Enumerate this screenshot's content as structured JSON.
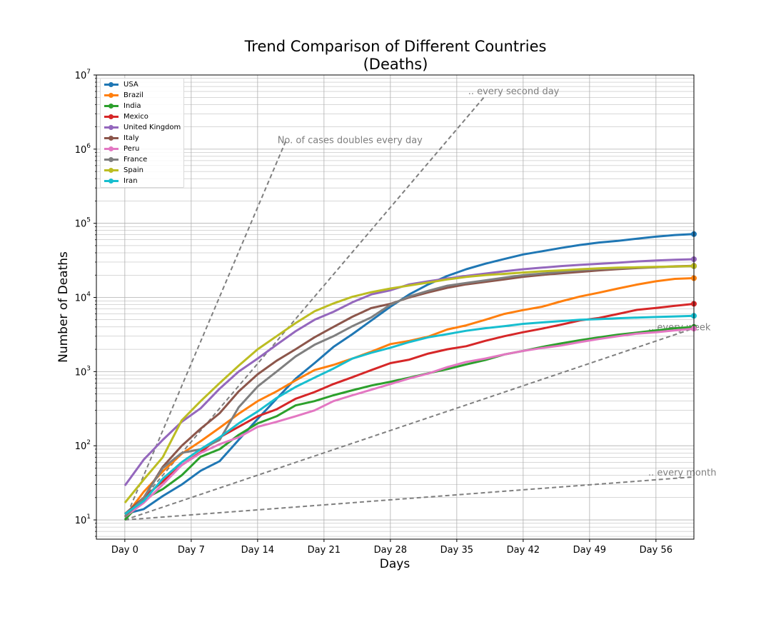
{
  "chart_data": {
    "type": "line",
    "title": "Trend Comparison of Different Countries",
    "subtitle": "(Deaths)",
    "xlabel": "Days",
    "ylabel": "Number of Deaths",
    "yscale": "log",
    "xlim": [
      -3,
      60
    ],
    "ylim": [
      5.5,
      10000000
    ],
    "grid": true,
    "legend_position": "top-left",
    "x_ticks": [
      0,
      7,
      14,
      21,
      28,
      35,
      42,
      49,
      56
    ],
    "x_tick_labels": [
      "Day 0",
      "Day 7",
      "Day 14",
      "Day 21",
      "Day 28",
      "Day 35",
      "Day 42",
      "Day 49",
      "Day 56"
    ],
    "y_ticks": [
      10,
      100,
      1000,
      10000,
      100000,
      1000000,
      10000000
    ],
    "y_tick_labels": [
      {
        "base": "10",
        "exp": "1"
      },
      {
        "base": "10",
        "exp": "2"
      },
      {
        "base": "10",
        "exp": "3"
      },
      {
        "base": "10",
        "exp": "4"
      },
      {
        "base": "10",
        "exp": "5"
      },
      {
        "base": "10",
        "exp": "6"
      },
      {
        "base": "10",
        "exp": "7"
      }
    ],
    "x": [
      0,
      2,
      4,
      6,
      8,
      10,
      12,
      14,
      16,
      18,
      20,
      22,
      24,
      26,
      28,
      30,
      32,
      34,
      36,
      38,
      40,
      42,
      44,
      46,
      48,
      50,
      52,
      54,
      56,
      58,
      60
    ],
    "series": [
      {
        "name": "USA",
        "color": "#1f77b4",
        "values": [
          12,
          14,
          21,
          30,
          46,
          62,
          120,
          230,
          430,
          800,
          1300,
          2150,
          3200,
          4900,
          7500,
          11000,
          15000,
          19500,
          24000,
          28500,
          33000,
          38000,
          42000,
          46500,
          51000,
          55000,
          58000,
          62000,
          66000,
          69500,
          71500
        ]
      },
      {
        "name": "Brazil",
        "color": "#ff7f0e",
        "values": [
          11,
          24,
          45,
          78,
          115,
          175,
          270,
          400,
          540,
          760,
          1050,
          1230,
          1500,
          1860,
          2350,
          2600,
          2960,
          3700,
          4200,
          5000,
          6000,
          6750,
          7500,
          8850,
          10300,
          11600,
          13200,
          14900,
          16500,
          17800,
          18200
        ]
      },
      {
        "name": "India",
        "color": "#2ca02c",
        "values": [
          10,
          19,
          26,
          40,
          71,
          90,
          140,
          200,
          250,
          350,
          400,
          480,
          560,
          650,
          730,
          830,
          950,
          1080,
          1250,
          1430,
          1700,
          1900,
          2150,
          2400,
          2650,
          2900,
          3150,
          3350,
          3600,
          3850,
          4000
        ]
      },
      {
        "name": "Mexico",
        "color": "#d62728",
        "values": [
          12,
          20,
          33,
          55,
          82,
          130,
          180,
          250,
          310,
          430,
          530,
          680,
          840,
          1050,
          1300,
          1450,
          1750,
          2000,
          2200,
          2600,
          3000,
          3400,
          3800,
          4300,
          4900,
          5300,
          6000,
          6800,
          7200,
          7700,
          8200
        ]
      },
      {
        "name": "United Kingdom",
        "color": "#9467bd",
        "values": [
          29,
          65,
          120,
          210,
          320,
          590,
          1000,
          1500,
          2300,
          3500,
          5000,
          6400,
          8600,
          11000,
          12500,
          15000,
          16500,
          18000,
          19500,
          21000,
          22500,
          24000,
          25200,
          26500,
          27500,
          28400,
          29400,
          30600,
          31500,
          32200,
          32800
        ]
      },
      {
        "name": "Italy",
        "color": "#8c564b",
        "values": [
          12,
          20,
          52,
          100,
          170,
          275,
          540,
          920,
          1400,
          2000,
          2900,
          4000,
          5500,
          7200,
          8200,
          10000,
          11700,
          13500,
          15000,
          16200,
          17500,
          19000,
          20100,
          21100,
          22100,
          23200,
          24100,
          24900,
          25500,
          26300,
          26700
        ]
      },
      {
        "name": "Peru",
        "color": "#e377c2",
        "values": [
          11,
          17,
          30,
          55,
          80,
          105,
          130,
          180,
          210,
          250,
          300,
          400,
          480,
          570,
          680,
          810,
          940,
          1150,
          1350,
          1500,
          1700,
          1900,
          2080,
          2250,
          2500,
          2750,
          3000,
          3250,
          3400,
          3600,
          3800
        ]
      },
      {
        "name": "France",
        "color": "#7f7f7f",
        "values": [
          11,
          20,
          50,
          80,
          90,
          120,
          330,
          630,
          1000,
          1600,
          2300,
          3000,
          4100,
          5400,
          8000,
          10300,
          12300,
          14400,
          15700,
          17000,
          18500,
          20000,
          21000,
          22200,
          23300,
          24200,
          24800,
          25200,
          25600,
          26000,
          26400
        ]
      },
      {
        "name": "Spain",
        "color": "#bcbd22",
        "values": [
          17,
          35,
          70,
          220,
          400,
          700,
          1200,
          2000,
          3000,
          4500,
          6500,
          8300,
          10200,
          11800,
          13200,
          14500,
          15900,
          17500,
          18900,
          20000,
          20800,
          21700,
          22500,
          23200,
          24000,
          24700,
          25200,
          25500,
          25900,
          26200,
          26500
        ]
      },
      {
        "name": "Iran",
        "color": "#17becf",
        "values": [
          12,
          18,
          36,
          60,
          90,
          130,
          200,
          290,
          440,
          620,
          830,
          1100,
          1500,
          1800,
          2100,
          2500,
          2900,
          3200,
          3550,
          3850,
          4100,
          4400,
          4600,
          4800,
          5000,
          5100,
          5250,
          5350,
          5450,
          5550,
          5650
        ]
      }
    ],
    "reference_lines": [
      {
        "label": "No. of cases doubles every day",
        "x0": 0,
        "y0": 10,
        "x1": 17,
        "y1": 1310720
      },
      {
        "label": ".. every second day",
        "x0": 0,
        "y0": 10,
        "x1": 38,
        "y1": 5242880
      },
      {
        "label": ".. every week",
        "x0": 0,
        "y0": 10,
        "x1": 60,
        "y1": 3840
      },
      {
        "label": ".. every month",
        "x0": 0,
        "y0": 10,
        "x1": 60,
        "y1": 38
      }
    ],
    "reference_line_color": "#7f7f7f"
  }
}
